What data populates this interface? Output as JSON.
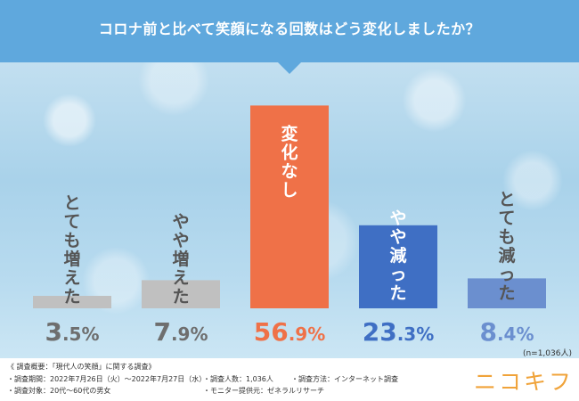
{
  "title": "コロナ前と比べて笑顔になる回数はどう変化しましたか？",
  "colors": {
    "title_band": "#5fa8dd",
    "bar_gray": "#c0c0c0",
    "bar_orange": "#ef7148",
    "bar_blue_dark": "#3f6fc4",
    "bar_blue_light": "#6b8fcf",
    "value_gray": "#6e6e6e",
    "logo": "#f0a33a"
  },
  "chart_data": {
    "type": "bar",
    "categories": [
      "とても増えた",
      "やや増えた",
      "変化なし",
      "やや減った",
      "とても減った"
    ],
    "values": [
      3.5,
      7.9,
      56.9,
      23.3,
      8.4
    ],
    "value_labels": [
      "3.5%",
      "7.9%",
      "56.9%",
      "23.3%",
      "8.4%"
    ],
    "title": "コロナ前と比べて笑顔になる回数はどう変化しましたか？",
    "ylim": [
      0,
      60
    ],
    "grid": false,
    "legend": "none",
    "note": "(n=1,036人)"
  },
  "footer": {
    "heading": "《 調査概要：「現代人の笑顔」に関する調査》",
    "items": [
      "・調査期間：2022年7月26日（火）～2022年7月27日（水）",
      "・調査人数：1,036人",
      "・調査方法：インターネット調査",
      "・調査対象：20代～60代の男女",
      "・モニター提供元：ゼネラルリサーチ"
    ]
  },
  "logo": "ニコキフ"
}
